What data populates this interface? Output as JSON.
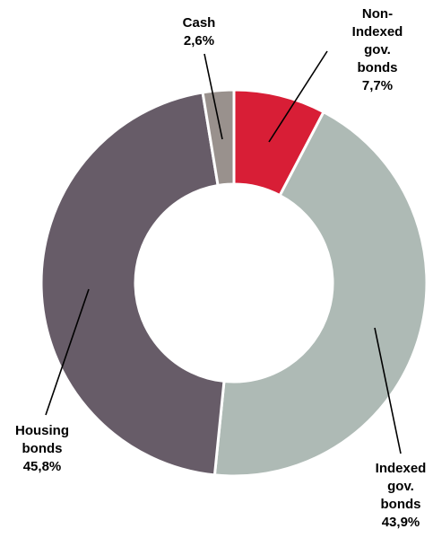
{
  "chart_data": {
    "type": "pie",
    "variant": "donut",
    "title": "",
    "slices": [
      {
        "label": "Non-Indexed gov. bonds",
        "label_lines": [
          "Non-",
          "Indexed",
          "gov.",
          "bonds"
        ],
        "value": 7.7,
        "value_label": "7,7%",
        "color": "#d81e36"
      },
      {
        "label": "Indexed gov. bonds",
        "label_lines": [
          "Indexed",
          "gov.",
          "bonds"
        ],
        "value": 43.9,
        "value_label": "43,9%",
        "color": "#aebab5"
      },
      {
        "label": "Housing bonds",
        "label_lines": [
          "Housing",
          "bonds"
        ],
        "value": 45.8,
        "value_label": "45,8%",
        "color": "#675c68"
      },
      {
        "label": "Cash",
        "label_lines": [
          "Cash"
        ],
        "value": 2.6,
        "value_label": "2,6%",
        "color": "#99918d"
      }
    ],
    "legend": "none",
    "label_style": "callout-lines"
  }
}
